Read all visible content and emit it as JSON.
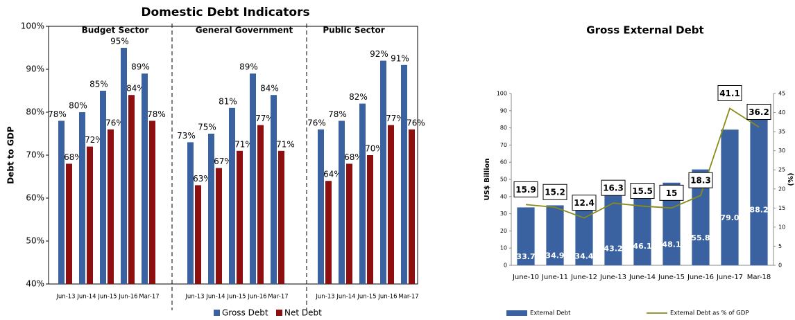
{
  "chart_data": [
    {
      "type": "panel_bar",
      "title": "Domestic Debt Indicators",
      "y_label": "Debt  to GDP",
      "ylim": [
        40,
        100
      ],
      "yticks": [
        {
          "value": 40,
          "label": "40%"
        },
        {
          "value": 50,
          "label": "50%"
        },
        {
          "value": 60,
          "label": "60%"
        },
        {
          "value": 70,
          "label": "70%"
        },
        {
          "value": 80,
          "label": "80%"
        },
        {
          "value": 90,
          "label": "90%"
        },
        {
          "value": 100,
          "label": "100%"
        }
      ],
      "series": [
        {
          "name": "Gross Debt",
          "color": "#3a62a0"
        },
        {
          "name": "Net Debt",
          "color": "#8e0f0f"
        }
      ],
      "panels": [
        {
          "title": "Budget Sector",
          "categories": [
            "Jun-13",
            "Jun-14",
            "Jun-15",
            "Jun-16",
            "Mar-17"
          ],
          "values": [
            [
              78,
              80,
              85,
              95,
              89
            ],
            [
              68,
              72,
              76,
              84,
              78
            ]
          ],
          "value_labels": [
            [
              "78%",
              "80%",
              "85%",
              "95%",
              "89%"
            ],
            [
              "68%",
              "72%",
              "76%",
              "84%",
              "78%"
            ]
          ]
        },
        {
          "title": "General Government",
          "categories": [
            "Jun-13",
            "Jun-14",
            "Jun-15",
            "Jun-16",
            "Mar-17"
          ],
          "values": [
            [
              73,
              75,
              81,
              89,
              84
            ],
            [
              63,
              67,
              71,
              77,
              71
            ]
          ],
          "value_labels": [
            [
              "73%",
              "75%",
              "81%",
              "89%",
              "84%"
            ],
            [
              "63%",
              "67%",
              "71%",
              "77%",
              "71%"
            ]
          ]
        },
        {
          "title": "Public Sector",
          "categories": [
            "Jun-13",
            "Jun-14",
            "Jun-15",
            "Jun-16",
            "Mar-17"
          ],
          "values": [
            [
              76,
              78,
              82,
              92,
              91
            ],
            [
              64,
              68,
              70,
              77,
              76
            ]
          ],
          "value_labels": [
            [
              "76%",
              "78%",
              "82%",
              "92%",
              "91%"
            ],
            [
              "64%",
              "68%",
              "70%",
              "77%",
              "76%"
            ]
          ]
        }
      ]
    },
    {
      "type": "bar_line",
      "title": "Gross External Debt",
      "y_label": "US$ Billion",
      "y2_label": "(%)",
      "categories": [
        "June-10",
        "June-11",
        "June-12",
        "June-13",
        "June-14",
        "June-15",
        "June-16",
        "June-17",
        "Mar-18"
      ],
      "ylim": [
        0,
        100
      ],
      "yticks": [
        0,
        10,
        20,
        30,
        40,
        50,
        60,
        70,
        80,
        90,
        100
      ],
      "y2lim": [
        0,
        45
      ],
      "y2ticks": [
        0,
        5,
        10,
        15,
        20,
        25,
        30,
        35,
        40,
        45
      ],
      "series": [
        {
          "name": "External Debt",
          "color": "#3a62a0",
          "values": [
            33.7,
            34.9,
            34.4,
            43.2,
            46.1,
            48.1,
            55.8,
            79.0,
            88.2
          ],
          "value_labels": [
            "33.7",
            "34.9",
            "34.4",
            "43.2",
            "46.1",
            "48.1",
            "55.8",
            "79.0",
            "88.2"
          ]
        },
        {
          "name": "External Debt as % of GDP",
          "color": "#8a8a1a",
          "axis": "y2",
          "values": [
            15.9,
            15.2,
            12.4,
            16.3,
            15.5,
            15.0,
            18.3,
            41.1,
            36.2
          ]
        }
      ]
    }
  ]
}
